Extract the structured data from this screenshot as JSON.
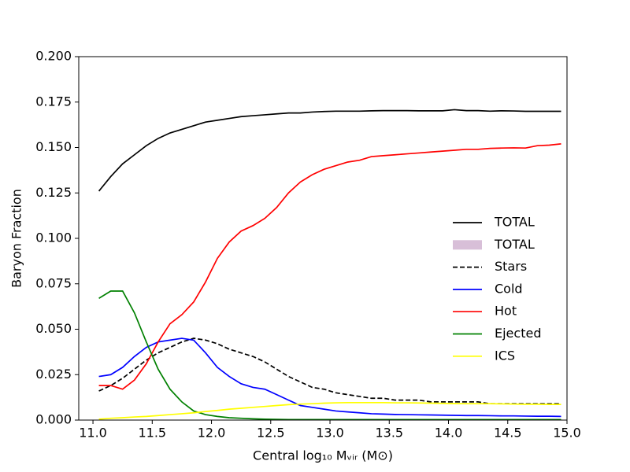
{
  "chart_data": {
    "type": "line",
    "xlabel": "Central log₁₀ Mᵥᵢᵣ (M⊙)",
    "ylabel": "Baryon Fraction",
    "x": [
      11.05,
      11.15,
      11.25,
      11.35,
      11.45,
      11.55,
      11.65,
      11.75,
      11.85,
      11.95,
      12.05,
      12.15,
      12.25,
      12.35,
      12.45,
      12.55,
      12.65,
      12.75,
      12.85,
      12.95,
      13.05,
      13.15,
      13.25,
      13.35,
      13.45,
      13.55,
      13.65,
      13.75,
      13.85,
      13.95,
      14.05,
      14.15,
      14.25,
      14.35,
      14.45,
      14.55,
      14.65,
      14.75,
      14.85,
      14.95
    ],
    "series": [
      {
        "name": "TOTAL",
        "color": "#000000",
        "style": "solid",
        "values": [
          0.126,
          0.134,
          0.141,
          0.146,
          0.151,
          0.155,
          0.158,
          0.16,
          0.162,
          0.164,
          0.165,
          0.166,
          0.167,
          0.1675,
          0.168,
          0.1685,
          0.169,
          0.169,
          0.1695,
          0.1698,
          0.17,
          0.17,
          0.17,
          0.1702,
          0.1703,
          0.1703,
          0.1703,
          0.1702,
          0.1702,
          0.1702,
          0.1708,
          0.1703,
          0.1703,
          0.17,
          0.1702,
          0.1701,
          0.1699,
          0.1699,
          0.1699,
          0.1699
        ]
      },
      {
        "name": "TOTAL",
        "color": "#d8bfd8",
        "style": "patch"
      },
      {
        "name": "Stars",
        "color": "#000000",
        "style": "dashed",
        "values": [
          0.016,
          0.019,
          0.023,
          0.028,
          0.033,
          0.037,
          0.04,
          0.043,
          0.045,
          0.044,
          0.042,
          0.039,
          0.037,
          0.035,
          0.032,
          0.028,
          0.024,
          0.021,
          0.018,
          0.017,
          0.015,
          0.014,
          0.013,
          0.012,
          0.012,
          0.011,
          0.011,
          0.011,
          0.01,
          0.01,
          0.01,
          0.01,
          0.01,
          0.009,
          0.009,
          0.009,
          0.009,
          0.009,
          0.009,
          0.009
        ]
      },
      {
        "name": "Cold",
        "color": "#0000ff",
        "style": "solid",
        "values": [
          0.024,
          0.025,
          0.029,
          0.035,
          0.04,
          0.043,
          0.044,
          0.045,
          0.044,
          0.037,
          0.029,
          0.024,
          0.02,
          0.018,
          0.017,
          0.014,
          0.011,
          0.008,
          0.007,
          0.006,
          0.005,
          0.0045,
          0.004,
          0.0035,
          0.0033,
          0.0031,
          0.003,
          0.0029,
          0.0028,
          0.0027,
          0.0026,
          0.0025,
          0.0025,
          0.0024,
          0.0023,
          0.0023,
          0.0022,
          0.0021,
          0.0021,
          0.002
        ]
      },
      {
        "name": "Hot",
        "color": "#ff0000",
        "style": "solid",
        "values": [
          0.019,
          0.019,
          0.017,
          0.022,
          0.031,
          0.043,
          0.053,
          0.058,
          0.065,
          0.076,
          0.089,
          0.098,
          0.104,
          0.107,
          0.111,
          0.117,
          0.125,
          0.131,
          0.135,
          0.138,
          0.14,
          0.142,
          0.143,
          0.145,
          0.1455,
          0.146,
          0.1465,
          0.147,
          0.1475,
          0.148,
          0.1485,
          0.149,
          0.149,
          0.1495,
          0.1497,
          0.1498,
          0.1497,
          0.151,
          0.1513,
          0.152
        ]
      },
      {
        "name": "Ejected",
        "color": "#008000",
        "style": "solid",
        "values": [
          0.067,
          0.071,
          0.071,
          0.059,
          0.043,
          0.028,
          0.017,
          0.01,
          0.005,
          0.003,
          0.002,
          0.0013,
          0.001,
          0.0007,
          0.0005,
          0.0004,
          0.0003,
          0.0003,
          0.0003,
          0.0003,
          0.0003,
          0.0003,
          0.0003,
          0.0003,
          0.0003,
          0.0003,
          0.0003,
          0.0003,
          0.0003,
          0.0003,
          0.0003,
          0.0003,
          0.0003,
          0.0003,
          0.0003,
          0.0003,
          0.0003,
          0.0003,
          0.0003,
          0.0003
        ]
      },
      {
        "name": "ICS",
        "color": "#ffff00",
        "style": "solid",
        "values": [
          0.0005,
          0.001,
          0.0013,
          0.0017,
          0.002,
          0.0025,
          0.003,
          0.0035,
          0.004,
          0.0047,
          0.0053,
          0.006,
          0.0065,
          0.007,
          0.0075,
          0.008,
          0.0085,
          0.0088,
          0.009,
          0.0093,
          0.0095,
          0.0096,
          0.0096,
          0.0096,
          0.0096,
          0.0095,
          0.0095,
          0.0094,
          0.0093,
          0.0092,
          0.0091,
          0.009,
          0.009,
          0.009,
          0.0089,
          0.0088,
          0.0087,
          0.0087,
          0.0086,
          0.0086
        ]
      }
    ],
    "xlim": [
      10.88,
      15.0
    ],
    "xticks": [
      {
        "value": 11,
        "label": "11.0"
      },
      {
        "value": 11.5,
        "label": "11.5"
      },
      {
        "value": 12,
        "label": "12.0"
      },
      {
        "value": 12.5,
        "label": "12.5"
      },
      {
        "value": 13,
        "label": "13.0"
      },
      {
        "value": 13.5,
        "label": "13.5"
      },
      {
        "value": 14,
        "label": "14.0"
      },
      {
        "value": 14.5,
        "label": "14.5"
      },
      {
        "value": 15,
        "label": "15.0"
      }
    ],
    "ylim": [
      0,
      0.2
    ],
    "yticks": [
      {
        "value": 0,
        "label": "0.000"
      },
      {
        "value": 0.025,
        "label": "0.025"
      },
      {
        "value": 0.05,
        "label": "0.050"
      },
      {
        "value": 0.075,
        "label": "0.075"
      },
      {
        "value": 0.1,
        "label": "0.100"
      },
      {
        "value": 0.125,
        "label": "0.125"
      },
      {
        "value": 0.15,
        "label": "0.150"
      },
      {
        "value": 0.175,
        "label": "0.175"
      },
      {
        "value": 0.2,
        "label": "0.200"
      }
    ],
    "legend": "center right"
  }
}
